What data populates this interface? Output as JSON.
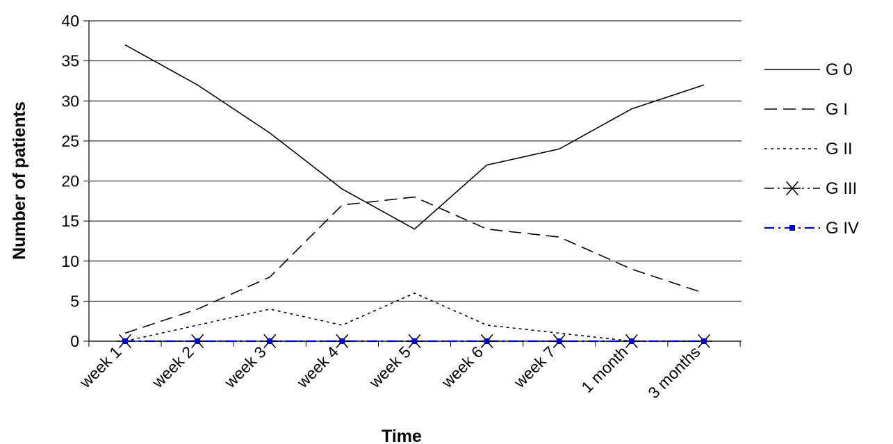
{
  "chart_data": {
    "type": "line",
    "xlabel": "Time",
    "ylabel": "Number of patients",
    "ylim": [
      0,
      40
    ],
    "yticks": [
      0,
      5,
      10,
      15,
      20,
      25,
      30,
      35,
      40
    ],
    "grid": "horizontal",
    "legend_position": "right",
    "categories": [
      "week 1",
      "week 2",
      "week 3",
      "week 4",
      "week 5",
      "week 6",
      "week 7",
      "1 month",
      "3 months"
    ],
    "series": [
      {
        "name": "G 0",
        "values": [
          37,
          32,
          26,
          19,
          14,
          22,
          24,
          29,
          32
        ],
        "color": "#000000",
        "dash": "solid",
        "marker": "none"
      },
      {
        "name": "G I",
        "values": [
          1,
          4,
          8,
          17,
          18,
          14,
          13,
          9,
          6
        ],
        "color": "#000000",
        "dash": "long-dash",
        "marker": "none"
      },
      {
        "name": "G II",
        "values": [
          0,
          2,
          4,
          2,
          6,
          2,
          1,
          0,
          0
        ],
        "color": "#000000",
        "dash": "dotted",
        "marker": "none"
      },
      {
        "name": "G III",
        "values": [
          0,
          0,
          0,
          0,
          0,
          0,
          0,
          0,
          0
        ],
        "color": "#000000",
        "dash": "dash-dot-dot",
        "marker": "asterisk"
      },
      {
        "name": "G IV",
        "values": [
          0,
          0,
          0,
          0,
          0,
          0,
          0,
          0,
          0
        ],
        "color": "#0000cc",
        "dash": "dash-dot",
        "marker": "square"
      }
    ]
  }
}
